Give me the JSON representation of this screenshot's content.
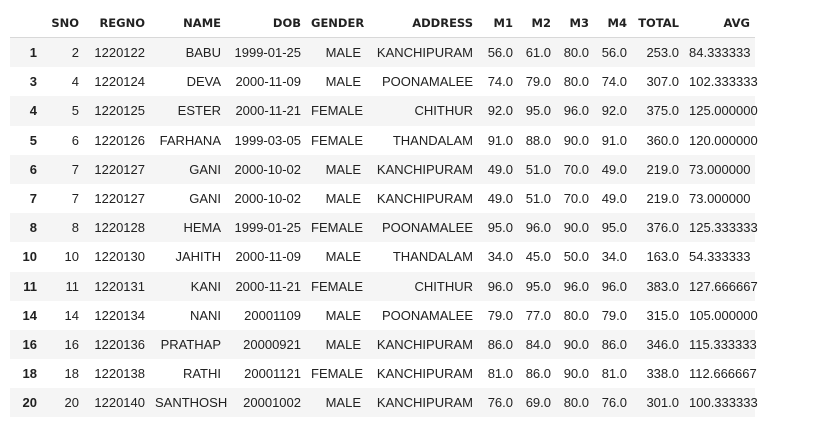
{
  "table": {
    "columns": [
      "",
      "SNO",
      "REGNO",
      "NAME",
      "DOB",
      "GENDER",
      "ADDRESS",
      "M1",
      "M2",
      "M3",
      "M4",
      "TOTAL",
      "AVG"
    ],
    "rows": [
      [
        "1",
        "2",
        "1220122",
        "BABU",
        "1999-01-25",
        "MALE",
        "KANCHIPURAM",
        "56.0",
        "61.0",
        "80.0",
        "56.0",
        "253.0",
        "84.333333"
      ],
      [
        "3",
        "4",
        "1220124",
        "DEVA",
        "2000-11-09",
        "MALE",
        "POONAMALEE",
        "74.0",
        "79.0",
        "80.0",
        "74.0",
        "307.0",
        "102.333333"
      ],
      [
        "4",
        "5",
        "1220125",
        "ESTER",
        "2000-11-21",
        "FEMALE",
        "CHITHUR",
        "92.0",
        "95.0",
        "96.0",
        "92.0",
        "375.0",
        "125.000000"
      ],
      [
        "5",
        "6",
        "1220126",
        "FARHANA",
        "1999-03-05",
        "FEMALE",
        "THANDALAM",
        "91.0",
        "88.0",
        "90.0",
        "91.0",
        "360.0",
        "120.000000"
      ],
      [
        "6",
        "7",
        "1220127",
        "GANI",
        "2000-10-02",
        "MALE",
        "KANCHIPURAM",
        "49.0",
        "51.0",
        "70.0",
        "49.0",
        "219.0",
        "73.000000"
      ],
      [
        "7",
        "7",
        "1220127",
        "GANI",
        "2000-10-02",
        "MALE",
        "KANCHIPURAM",
        "49.0",
        "51.0",
        "70.0",
        "49.0",
        "219.0",
        "73.000000"
      ],
      [
        "8",
        "8",
        "1220128",
        "HEMA",
        "1999-01-25",
        "FEMALE",
        "POONAMALEE",
        "95.0",
        "96.0",
        "90.0",
        "95.0",
        "376.0",
        "125.333333"
      ],
      [
        "10",
        "10",
        "1220130",
        "JAHITH",
        "2000-11-09",
        "MALE",
        "THANDALAM",
        "34.0",
        "45.0",
        "50.0",
        "34.0",
        "163.0",
        "54.333333"
      ],
      [
        "11",
        "11",
        "1220131",
        "KANI",
        "2000-11-21",
        "FEMALE",
        "CHITHUR",
        "96.0",
        "95.0",
        "96.0",
        "96.0",
        "383.0",
        "127.666667"
      ],
      [
        "14",
        "14",
        "1220134",
        "NANI",
        "20001109",
        "MALE",
        "POONAMALEE",
        "79.0",
        "77.0",
        "80.0",
        "79.0",
        "315.0",
        "105.000000"
      ],
      [
        "16",
        "16",
        "1220136",
        "PRATHAP",
        "20000921",
        "MALE",
        "KANCHIPURAM",
        "86.0",
        "84.0",
        "90.0",
        "86.0",
        "346.0",
        "115.333333"
      ],
      [
        "18",
        "18",
        "1220138",
        "RATHI",
        "20001121",
        "FEMALE",
        "KANCHIPURAM",
        "81.0",
        "86.0",
        "90.0",
        "81.0",
        "338.0",
        "112.666667"
      ],
      [
        "20",
        "20",
        "1220140",
        "SANTHOSH",
        "20001002",
        "MALE",
        "KANCHIPURAM",
        "76.0",
        "69.0",
        "80.0",
        "76.0",
        "301.0",
        "100.333333"
      ]
    ]
  }
}
